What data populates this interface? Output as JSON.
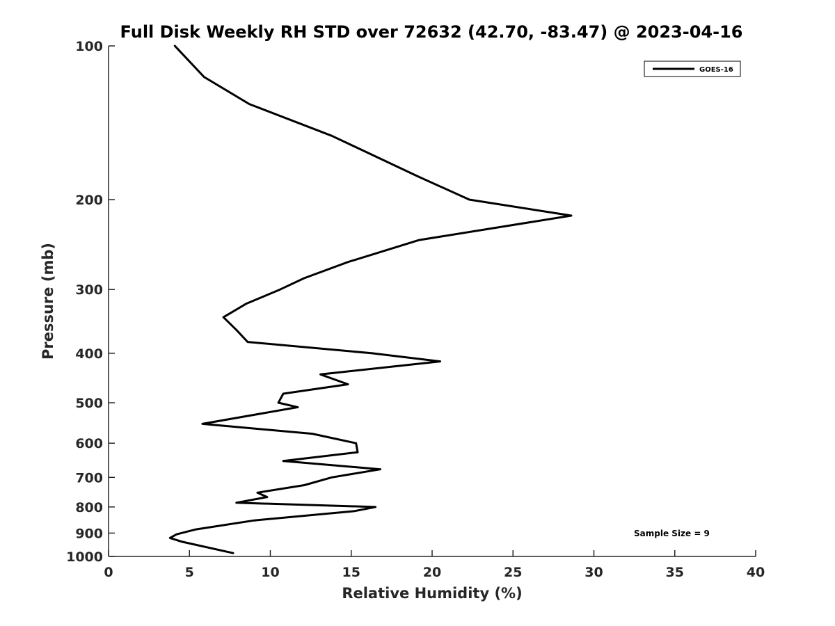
{
  "chart_data": {
    "type": "line",
    "title": "Full Disk Weekly RH STD over 72632 (42.70, -83.47) @ 2023-04-16",
    "xlabel": "Relative Humidity (%)",
    "ylabel": "Pressure (mb)",
    "xlim": [
      0,
      40
    ],
    "ylim": [
      100,
      1000
    ],
    "yscale": "log",
    "reverse_y": true,
    "grid": false,
    "legend_position": "top-right",
    "xticks": [
      0,
      5,
      10,
      15,
      20,
      25,
      30,
      35,
      40
    ],
    "yticks": [
      100,
      200,
      300,
      400,
      500,
      600,
      700,
      800,
      900,
      1000
    ],
    "series": [
      {
        "name": "GOES-16",
        "color": "#000000",
        "points": [
          [
            4.1,
            100
          ],
          [
            5.9,
            115
          ],
          [
            8.7,
            130
          ],
          [
            13.8,
            150
          ],
          [
            19.1,
            180
          ],
          [
            22.3,
            200
          ],
          [
            28.6,
            215
          ],
          [
            19.2,
            240
          ],
          [
            14.8,
            265
          ],
          [
            12.1,
            285
          ],
          [
            10.6,
            300
          ],
          [
            8.5,
            320
          ],
          [
            7.1,
            340
          ],
          [
            7.9,
            360
          ],
          [
            8.6,
            380
          ],
          [
            16.3,
            400
          ],
          [
            20.5,
            415
          ],
          [
            13.1,
            440
          ],
          [
            14.8,
            460
          ],
          [
            10.8,
            480
          ],
          [
            10.5,
            500
          ],
          [
            11.7,
            510
          ],
          [
            5.8,
            550
          ],
          [
            12.6,
            575
          ],
          [
            15.3,
            600
          ],
          [
            15.4,
            625
          ],
          [
            10.8,
            650
          ],
          [
            16.8,
            675
          ],
          [
            13.8,
            700
          ],
          [
            12.1,
            725
          ],
          [
            9.2,
            750
          ],
          [
            9.8,
            765
          ],
          [
            7.9,
            785
          ],
          [
            16.5,
            800
          ],
          [
            15.2,
            815
          ],
          [
            9.0,
            850
          ],
          [
            5.4,
            885
          ],
          [
            4.2,
            905
          ],
          [
            3.8,
            920
          ],
          [
            4.5,
            935
          ],
          [
            7.7,
            985
          ]
        ]
      }
    ],
    "annotations": [
      "Sample Size = 9"
    ]
  }
}
